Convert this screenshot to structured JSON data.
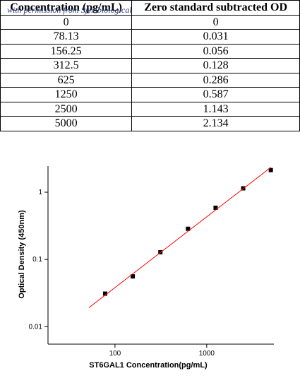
{
  "table": {
    "header": [
      "Concentration (pg/mL)",
      "Zero standard subtracted OD"
    ],
    "watermark": "with permission from Synobiological",
    "rows": [
      [
        "0",
        "0"
      ],
      [
        "78.13",
        "0.031"
      ],
      [
        "156.25",
        "0.056"
      ],
      [
        "312.5",
        "0.128"
      ],
      [
        "625",
        "0.286"
      ],
      [
        "1250",
        "0.587"
      ],
      [
        "2500",
        "1.143"
      ],
      [
        "5000",
        "2.134"
      ]
    ]
  },
  "chart_data": {
    "type": "scatter",
    "x_label": "ST6GAL1  Concentration(pg/mL)",
    "y_label": "Optical Density (450nm)",
    "log_x": true,
    "log_y": true,
    "xlim": [
      18.6,
      5400
    ],
    "ylim": [
      0.0055,
      2.45
    ],
    "xticks": [
      100,
      1000
    ],
    "yticks": [
      0.01,
      0.1,
      1
    ],
    "series": [
      {
        "color": "#000000",
        "x": [
          78.13,
          156.25,
          312.5,
          625,
          1250,
          2500,
          5000
        ],
        "values": [
          0.031,
          0.056,
          0.128,
          0.286,
          0.587,
          1.143,
          2.134
        ]
      },
      {
        "color": "#ff0000",
        "line": true,
        "x": [
          52,
          5000
        ],
        "values": [
          0.0192,
          2.34
        ]
      }
    ]
  }
}
